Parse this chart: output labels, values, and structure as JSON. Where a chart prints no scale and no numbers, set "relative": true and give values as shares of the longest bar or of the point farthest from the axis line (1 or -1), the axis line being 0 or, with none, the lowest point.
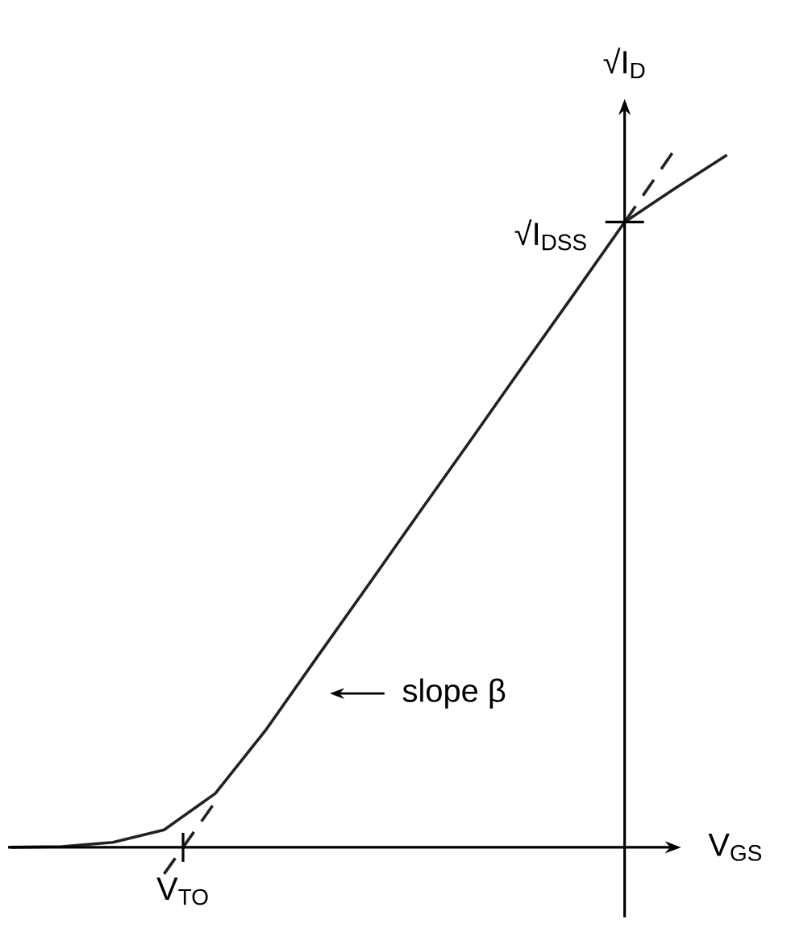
{
  "chart_data": {
    "type": "line",
    "relative": true,
    "xlabel": "V$_{GS}$",
    "ylabel": "√I$_{D}$",
    "categories": [
      null,
      null,
      null,
      null,
      null,
      null,
      null,
      null,
      null,
      null,
      null,
      null,
      null,
      null,
      null
    ],
    "series": [
      {
        "color": "#222222",
        "line_style": "solid",
        "values": [
          0,
          0.001,
          0.007,
          0.025,
          0.077,
          0.169,
          0.273,
          0.376,
          0.48,
          0.583,
          0.687,
          0.79,
          0.894,
          0.943,
          0.99
        ]
      },
      {
        "color": "#222222",
        "line_style": "dashed",
        "values": [
          null,
          null,
          null,
          -0.038,
          0.065,
          null,
          null,
          null,
          null,
          null,
          null,
          null,
          null,
          null,
          null
        ]
      },
      {
        "color": "#222222",
        "line_style": "dashed",
        "values": [
          null,
          null,
          null,
          null,
          null,
          null,
          null,
          null,
          null,
          null,
          null,
          null,
          0.894,
          1.0,
          null
        ]
      }
    ],
    "annotations": [
      "V$_{TO}$",
      "√I$_{DSS}$",
      "slope β"
    ]
  }
}
